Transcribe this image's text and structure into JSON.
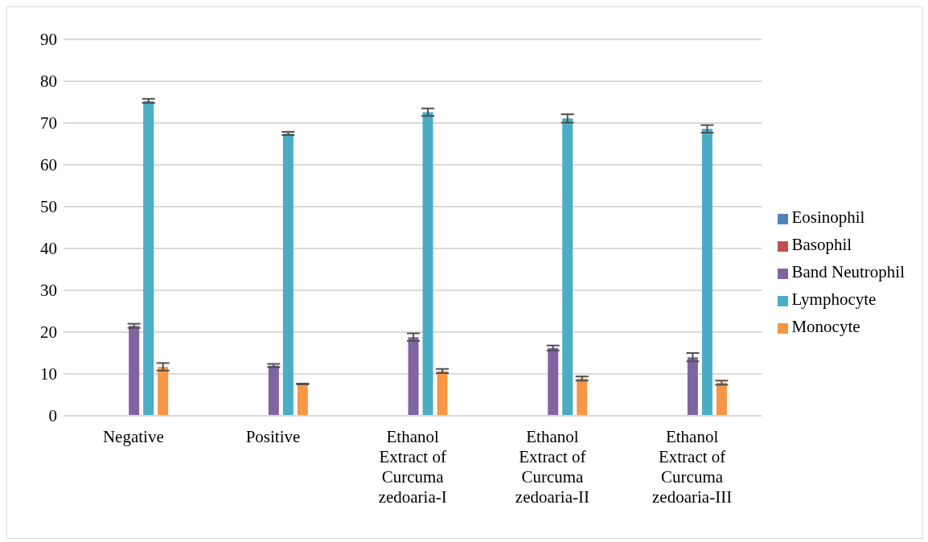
{
  "chart_data": {
    "type": "bar",
    "categories": [
      "Negative",
      "Positive",
      "Ethanol Extract of Curcuma zedoaria-I",
      "Ethanol Extract of Curcuma zedoaria-II",
      "Ethanol Extract of Curcuma zedoaria-III"
    ],
    "series": [
      {
        "name": "Eosinophil",
        "color": "#4f81bd",
        "values": [
          0,
          0,
          0,
          0,
          0
        ]
      },
      {
        "name": "Basophil",
        "color": "#c0504d",
        "values": [
          0,
          0,
          0,
          0,
          0
        ]
      },
      {
        "name": "Band Neutrophil",
        "color": "#8064a2",
        "values": [
          21.5,
          12.0,
          18.8,
          16.2,
          14.0
        ],
        "errors": [
          0.5,
          0.4,
          0.9,
          0.6,
          1.0
        ]
      },
      {
        "name": "Lymphocyte",
        "color": "#4bacc6",
        "values": [
          75.3,
          67.5,
          72.6,
          71.1,
          68.6
        ],
        "errors": [
          0.5,
          0.4,
          0.9,
          1.0,
          0.9
        ]
      },
      {
        "name": "Monocyte",
        "color": "#f79646",
        "values": [
          11.7,
          7.6,
          10.7,
          8.9,
          7.9
        ],
        "errors": [
          0.9,
          0.1,
          0.5,
          0.5,
          0.5
        ]
      }
    ],
    "ylim": [
      0,
      90
    ],
    "yticks": [
      0,
      10,
      20,
      30,
      40,
      50,
      60,
      70,
      80,
      90
    ],
    "grid": "y",
    "legend": "right"
  }
}
